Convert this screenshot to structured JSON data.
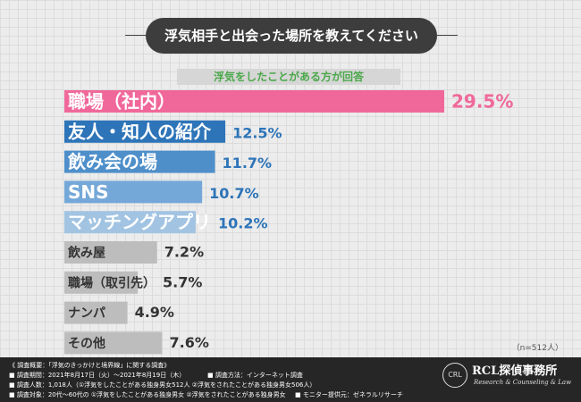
{
  "title": "浮気相手と出会った場所を教えてください",
  "subtitle": "浮気をしたことがある方が回答",
  "chart_data": {
    "type": "bar",
    "orientation": "horizontal",
    "categories": [
      "職場（社内）",
      "友人・知人の紹介",
      "飲み会の場",
      "SNS",
      "マッチングアプリ",
      "飲み屋",
      "職場（取引先）",
      "ナンパ",
      "その他"
    ],
    "values": [
      29.5,
      12.5,
      11.7,
      10.7,
      10.2,
      7.2,
      5.7,
      4.9,
      7.6
    ],
    "value_labels": [
      "29.5%",
      "12.5%",
      "11.7%",
      "10.7%",
      "10.2%",
      "7.2%",
      "5.7%",
      "4.9%",
      "7.6%"
    ],
    "colors": [
      "#f0689a",
      "#2d74b8",
      "#4e8fca",
      "#74a8d8",
      "#a2c4e2",
      "#bdbdbd",
      "#bdbdbd",
      "#bdbdbd",
      "#bdbdbd"
    ],
    "label_colors": [
      "#ffffff",
      "#ffffff",
      "#ffffff",
      "#ffffff",
      "#ffffff",
      "#333333",
      "#333333",
      "#333333",
      "#333333"
    ],
    "value_colors": [
      "#f0689a",
      "#2d74b8",
      "#2d74b8",
      "#2d74b8",
      "#2d74b8",
      "#333333",
      "#333333",
      "#333333",
      "#333333"
    ],
    "xlim": [
      0,
      29.5
    ],
    "sample_note": "（n=512人）"
  },
  "footer": {
    "lines": [
      "《 調査概要：「浮気のきっかけと境界線」に関する調査》",
      "■ 調査期間：2021年8月17日（火）〜2021年8月19日（木）",
      "■ 調査人数：1,018人（①浮気をしたことがある独身男女512人 ②浮気をされたことがある独身男女506人）",
      "■ 調査対象：20代〜60代の ①浮気をしたことがある独身男女 ②浮気をされたことがある独身男女"
    ],
    "method": "■ 調査方法：インターネット調査",
    "provider": "■ モニター提供元：ゼネラルリサーチ"
  },
  "logo": {
    "badge": "CRL",
    "name": "RCL探偵事務所",
    "tagline": "Research & Counseling & Law"
  }
}
